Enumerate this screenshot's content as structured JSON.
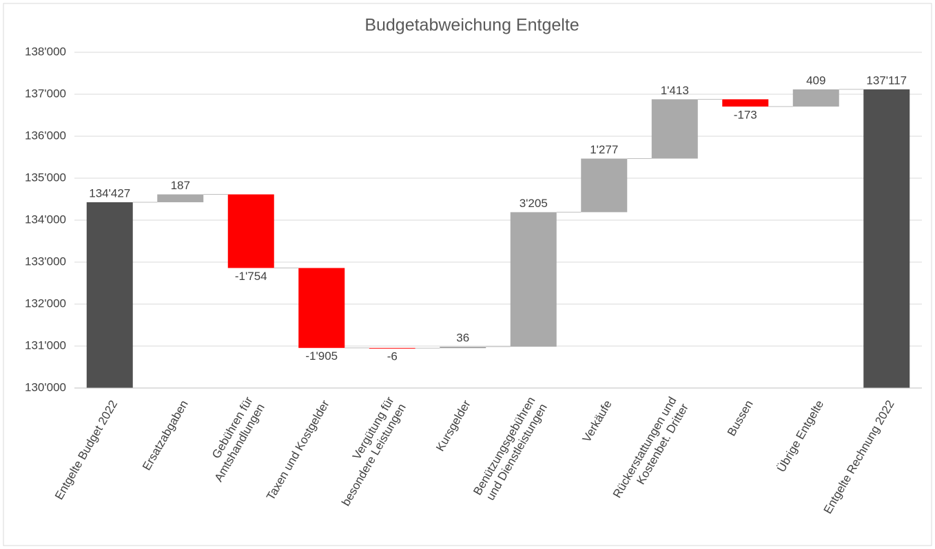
{
  "chart_data": {
    "type": "waterfall",
    "title": "Budgetabweichung Entgelte",
    "categories": [
      "Entgelte Budget 2022",
      "Ersatzabgaben",
      "Gebühren für\nAmtshandlungen",
      "Taxen und Kostgelder",
      "Vergütung für\nbesondere Leistungen",
      "Kursgelder",
      "Benützungsgebühren\nund Dienstleistungen",
      "Verkäufe",
      "Rückerstattungen und\nKostenbet. Dritter",
      "Bussen",
      "Übrige Entgelte",
      "Entgelte Rechnung 2022"
    ],
    "values": [
      134427,
      187,
      -1754,
      -1905,
      -6,
      36,
      3205,
      1277,
      1413,
      -173,
      409,
      137117
    ],
    "value_labels": [
      "134'427",
      "187",
      "-1'754",
      "-1'905",
      "-6",
      "36",
      "3'205",
      "1'277",
      "1'413",
      "-173",
      "409",
      "137'117"
    ],
    "total_indices": [
      0,
      11
    ],
    "colors": {
      "total": "#505050",
      "increase": "#aaaaaa",
      "decrease": "#ff0000"
    },
    "ylim": [
      130000,
      138000
    ],
    "yticks": [
      {
        "value": 130000,
        "label": "130'000"
      },
      {
        "value": 131000,
        "label": "131'000"
      },
      {
        "value": 132000,
        "label": "132'000"
      },
      {
        "value": 133000,
        "label": "133'000"
      },
      {
        "value": 134000,
        "label": "134'000"
      },
      {
        "value": 135000,
        "label": "135'000"
      },
      {
        "value": 136000,
        "label": "136'000"
      },
      {
        "value": 137000,
        "label": "137'000"
      },
      {
        "value": 138000,
        "label": "138'000"
      }
    ],
    "grid": true
  }
}
